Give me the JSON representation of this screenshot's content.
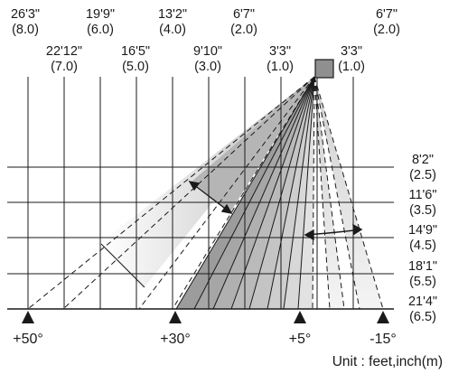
{
  "top_labels_row1": [
    {
      "ft": "26'3\"",
      "m": "(8.0)"
    },
    {
      "ft": "19'9\"",
      "m": "(6.0)"
    },
    {
      "ft": "13'2\"",
      "m": "(4.0)"
    },
    {
      "ft": "6'7\"",
      "m": "(2.0)"
    },
    {
      "ft": "6'7\"",
      "m": "(2.0)"
    }
  ],
  "top_labels_row2": [
    {
      "ft": "22'12\"",
      "m": "(7.0)"
    },
    {
      "ft": "16'5\"",
      "m": "(5.0)"
    },
    {
      "ft": "9'10\"",
      "m": "(3.0)"
    },
    {
      "ft": "3'3\"",
      "m": "(1.0)"
    },
    {
      "ft": "3'3\"",
      "m": "(1.0)"
    }
  ],
  "right_labels": [
    {
      "ft": "8'2\"",
      "m": "(2.5)"
    },
    {
      "ft": "11'6\"",
      "m": "(3.5)"
    },
    {
      "ft": "14'9\"",
      "m": "(4.5)"
    },
    {
      "ft": "18'1\"",
      "m": "(5.5)"
    },
    {
      "ft": "21'4\"",
      "m": "(6.5)"
    }
  ],
  "angles": [
    "+50°",
    "+30°",
    "+5°",
    "-15°"
  ],
  "unit_label": "Unit : feet,inch(m)",
  "colors": {
    "line": "#1a1a1a",
    "zone_dark": "#a9a9a9",
    "zone_mid": "#c4c4c4",
    "zone_light": "#dedede",
    "zone_faint": "#ececec",
    "sensor": "#8f8f8f"
  }
}
